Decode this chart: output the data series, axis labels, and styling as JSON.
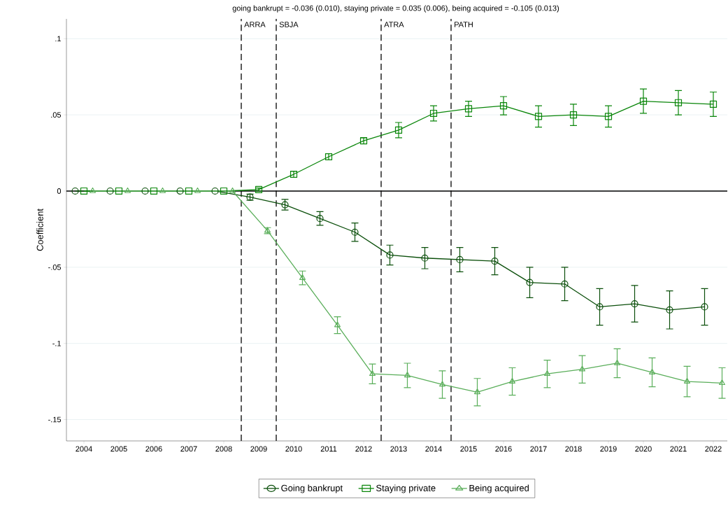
{
  "chart_data": {
    "type": "line",
    "title": "going bankrupt = -0.036 (0.010), staying private = 0.035 (0.006), being acquired = -0.105 (0.013)",
    "ylabel": "Coefficient",
    "xlim": [
      2003.5,
      2022.4
    ],
    "ylim": [
      -0.164,
      0.113
    ],
    "xticks": [
      2004,
      2005,
      2006,
      2007,
      2008,
      2009,
      2010,
      2011,
      2012,
      2013,
      2014,
      2015,
      2016,
      2017,
      2018,
      2019,
      2020,
      2021,
      2022
    ],
    "yticks": [
      {
        "value": -0.15,
        "label": "-.15"
      },
      {
        "value": -0.1,
        "label": "-.1"
      },
      {
        "value": -0.05,
        "label": "-.05"
      },
      {
        "value": 0,
        "label": "0"
      },
      {
        "value": 0.05,
        "label": ".05"
      },
      {
        "value": 0.1,
        "label": ".1"
      }
    ],
    "grid": "y",
    "legend": "bottom",
    "series": [
      {
        "name": "Going bankrupt",
        "color": "#0b4f0b",
        "marker": "circle",
        "x": [
          2003.75,
          2004.75,
          2005.75,
          2006.75,
          2007.75,
          2008.75,
          2009.75,
          2010.75,
          2011.75,
          2012.75,
          2013.75,
          2014.75,
          2015.75,
          2016.75,
          2017.75,
          2018.75,
          2019.75,
          2020.75,
          2021.75
        ],
        "values": [
          0,
          0,
          0,
          0,
          0,
          -0.004,
          -0.009,
          -0.018,
          -0.027,
          -0.042,
          -0.044,
          -0.045,
          -0.046,
          -0.06,
          -0.061,
          -0.076,
          -0.074,
          -0.078,
          -0.076
        ],
        "errors": [
          null,
          null,
          null,
          null,
          null,
          0.002,
          0.0035,
          0.0045,
          0.006,
          0.0065,
          0.007,
          0.008,
          0.009,
          0.01,
          0.011,
          0.012,
          0.012,
          0.0125,
          0.012
        ]
      },
      {
        "name": "Staying private",
        "color": "#0a860a",
        "marker": "square",
        "x": [
          2004,
          2005,
          2006,
          2007,
          2008,
          2009,
          2010,
          2011,
          2012,
          2013,
          2014,
          2015,
          2016,
          2017,
          2018,
          2019,
          2020,
          2021,
          2022
        ],
        "values": [
          0,
          0,
          0,
          0,
          0,
          0.001,
          0.011,
          0.0225,
          0.033,
          0.04,
          0.051,
          0.054,
          0.056,
          0.049,
          0.05,
          0.049,
          0.059,
          0.058,
          0.057
        ],
        "errors": [
          null,
          null,
          null,
          null,
          null,
          0.001,
          0.002,
          0.002,
          0.002,
          0.005,
          0.005,
          0.005,
          0.006,
          0.007,
          0.007,
          0.007,
          0.008,
          0.008,
          0.008
        ]
      },
      {
        "name": "Being acquired",
        "color": "#5aae5a",
        "marker": "triangle",
        "x": [
          2004.25,
          2005.25,
          2006.25,
          2007.25,
          2008.25,
          2009.25,
          2010.25,
          2011.25,
          2012.25,
          2013.25,
          2014.25,
          2015.25,
          2016.25,
          2017.25,
          2018.25,
          2019.25,
          2020.25,
          2021.25,
          2022.25
        ],
        "values": [
          0,
          0,
          0,
          0,
          0,
          -0.026,
          -0.057,
          -0.088,
          -0.12,
          -0.121,
          -0.127,
          -0.132,
          -0.125,
          -0.12,
          -0.117,
          -0.113,
          -0.119,
          -0.125,
          -0.126
        ],
        "errors": [
          null,
          null,
          null,
          null,
          null,
          0.002,
          0.0045,
          0.0055,
          0.0065,
          0.008,
          0.009,
          0.009,
          0.009,
          0.009,
          0.009,
          0.0095,
          0.0095,
          0.01,
          0.01
        ]
      }
    ],
    "ref_lines": [
      {
        "axis": "y",
        "value": 0,
        "label": null,
        "line_style": "solid",
        "color": "#000000"
      },
      {
        "axis": "x",
        "value": 2008.5,
        "label": "ARRA",
        "line_style": "dashed",
        "color": "#000000"
      },
      {
        "axis": "x",
        "value": 2009.5,
        "label": "SBJA",
        "line_style": "dashed",
        "color": "#000000"
      },
      {
        "axis": "x",
        "value": 2012.5,
        "label": "ATRA",
        "line_style": "dashed",
        "color": "#000000"
      },
      {
        "axis": "x",
        "value": 2014.5,
        "label": "PATH",
        "line_style": "dashed",
        "color": "#000000"
      }
    ]
  }
}
